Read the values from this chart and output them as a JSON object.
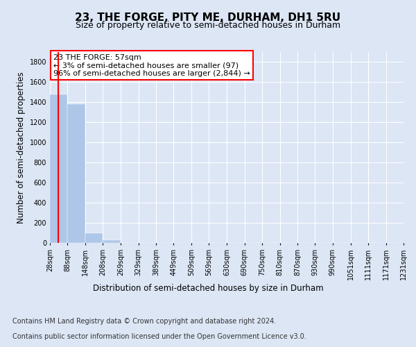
{
  "title": "23, THE FORGE, PITY ME, DURHAM, DH1 5RU",
  "subtitle": "Size of property relative to semi-detached houses in Durham",
  "xlabel": "Distribution of semi-detached houses by size in Durham",
  "ylabel": "Number of semi-detached properties",
  "footer_line1": "Contains HM Land Registry data © Crown copyright and database right 2024.",
  "footer_line2": "Contains public sector information licensed under the Open Government Licence v3.0.",
  "annotation_line1": "23 THE FORGE: 57sqm",
  "annotation_line2": "← 3% of semi-detached houses are smaller (97)",
  "annotation_line3": "96% of semi-detached houses are larger (2,844) →",
  "property_size_sqm": 57,
  "bin_edges": [
    28,
    88,
    148,
    208,
    269,
    329,
    389,
    449,
    509,
    569,
    630,
    690,
    750,
    810,
    870,
    930,
    990,
    1051,
    1111,
    1171,
    1231
  ],
  "bin_labels": [
    "28sqm",
    "88sqm",
    "148sqm",
    "208sqm",
    "269sqm",
    "329sqm",
    "389sqm",
    "449sqm",
    "509sqm",
    "569sqm",
    "630sqm",
    "690sqm",
    "750sqm",
    "810sqm",
    "870sqm",
    "930sqm",
    "990sqm",
    "1051sqm",
    "1111sqm",
    "1171sqm",
    "1231sqm"
  ],
  "bar_heights": [
    1480,
    1380,
    95,
    25,
    0,
    0,
    0,
    0,
    0,
    0,
    0,
    0,
    0,
    0,
    0,
    0,
    0,
    0,
    0,
    0
  ],
  "bar_color": "#aec6e8",
  "bar_edge_color": "#aec6e8",
  "vline_color": "red",
  "vline_x": 57,
  "ylim": [
    0,
    1900
  ],
  "yticks": [
    0,
    200,
    400,
    600,
    800,
    1000,
    1200,
    1400,
    1600,
    1800
  ],
  "background_color": "#dce6f5",
  "plot_background_color": "#dce6f5",
  "grid_color": "#ffffff",
  "title_fontsize": 11,
  "subtitle_fontsize": 9,
  "axis_label_fontsize": 8.5,
  "tick_fontsize": 7,
  "annotation_fontsize": 8,
  "footer_fontsize": 7
}
